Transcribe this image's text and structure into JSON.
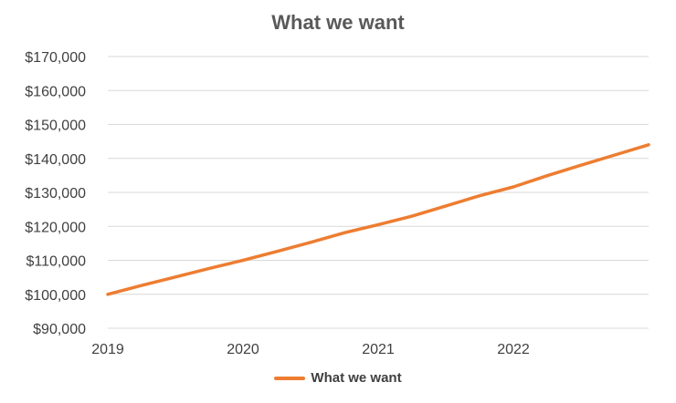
{
  "chart_data": {
    "type": "line",
    "title": "What we want",
    "xlabel": "",
    "ylabel": "",
    "x_ticks": [
      "2019",
      "2020",
      "2021",
      "2022"
    ],
    "y_ticks": [
      "$90,000",
      "$100,000",
      "$110,000",
      "$120,000",
      "$130,000",
      "$140,000",
      "$150,000",
      "$160,000",
      "$170,000"
    ],
    "ylim": [
      90000,
      170000
    ],
    "xlim": [
      2019,
      2023
    ],
    "grid": "horizontal",
    "legend_position": "bottom",
    "series": [
      {
        "name": "What we want",
        "color": "#ED7D31",
        "x": [
          2019.0,
          2019.25,
          2019.5,
          2019.75,
          2020.0,
          2020.25,
          2020.5,
          2020.75,
          2021.0,
          2021.25,
          2021.5,
          2021.75,
          2022.0,
          2022.25,
          2022.5,
          2022.75,
          2023.0
        ],
        "y": [
          100000,
          102600,
          105100,
          107600,
          110000,
          112600,
          115300,
          118100,
          120500,
          123000,
          126000,
          129000,
          131600,
          134900,
          138000,
          141000,
          144000
        ]
      }
    ]
  }
}
